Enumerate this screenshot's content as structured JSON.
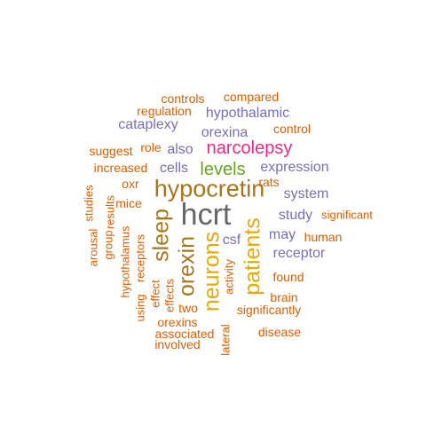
{
  "palette": {
    "orange": "#D95F02",
    "purple": "#7570B3",
    "magenta": "#E7298A",
    "green": "#66A61E",
    "gold": "#E6AB02",
    "brown": "#A6761D",
    "gray": "#666666"
  },
  "words": [
    {
      "text": "hcrt",
      "color": "gray"
    },
    {
      "text": "hypocretin",
      "color": "brown"
    },
    {
      "text": "patients",
      "color": "gold"
    },
    {
      "text": "neurons",
      "color": "gold"
    },
    {
      "text": "orexin",
      "color": "brown"
    },
    {
      "text": "sleep",
      "color": "brown"
    },
    {
      "text": "narcolepsy",
      "color": "magenta"
    },
    {
      "text": "levels",
      "color": "green"
    },
    {
      "text": "receptor",
      "color": "purple"
    },
    {
      "text": "expression",
      "color": "purple"
    },
    {
      "text": "hypothalamic",
      "color": "purple"
    },
    {
      "text": "cataplexy",
      "color": "purple"
    },
    {
      "text": "orexina",
      "color": "purple"
    },
    {
      "text": "also",
      "color": "purple"
    },
    {
      "text": "cells",
      "color": "purple"
    },
    {
      "text": "system",
      "color": "purple"
    },
    {
      "text": "study",
      "color": "purple"
    },
    {
      "text": "may",
      "color": "purple"
    },
    {
      "text": "csf",
      "color": "purple"
    },
    {
      "text": "control",
      "color": "orange"
    },
    {
      "text": "controls",
      "color": "orange"
    },
    {
      "text": "compared",
      "color": "orange"
    },
    {
      "text": "regulation",
      "color": "orange"
    },
    {
      "text": "role",
      "color": "orange"
    },
    {
      "text": "suggest",
      "color": "orange"
    },
    {
      "text": "increased",
      "color": "orange"
    },
    {
      "text": "rats",
      "color": "orange"
    },
    {
      "text": "oxr",
      "color": "orange"
    },
    {
      "text": "mice",
      "color": "orange"
    },
    {
      "text": "significant",
      "color": "orange"
    },
    {
      "text": "human",
      "color": "orange"
    },
    {
      "text": "found",
      "color": "orange"
    },
    {
      "text": "brain",
      "color": "orange"
    },
    {
      "text": "significantly",
      "color": "orange"
    },
    {
      "text": "disease",
      "color": "orange"
    },
    {
      "text": "orexins",
      "color": "orange"
    },
    {
      "text": "associated",
      "color": "orange"
    },
    {
      "text": "involved",
      "color": "orange"
    },
    {
      "text": "two",
      "color": "orange"
    },
    {
      "text": "arousal",
      "color": "orange"
    },
    {
      "text": "studies",
      "color": "orange"
    },
    {
      "text": "group",
      "color": "orange"
    },
    {
      "text": "results",
      "color": "orange"
    },
    {
      "text": "hypothalamus",
      "color": "orange"
    },
    {
      "text": "receptors",
      "color": "orange"
    },
    {
      "text": "using",
      "color": "orange"
    },
    {
      "text": "effect",
      "color": "orange"
    },
    {
      "text": "effects",
      "color": "orange"
    },
    {
      "text": "activity",
      "color": "orange"
    },
    {
      "text": "lateral",
      "color": "orange"
    }
  ]
}
